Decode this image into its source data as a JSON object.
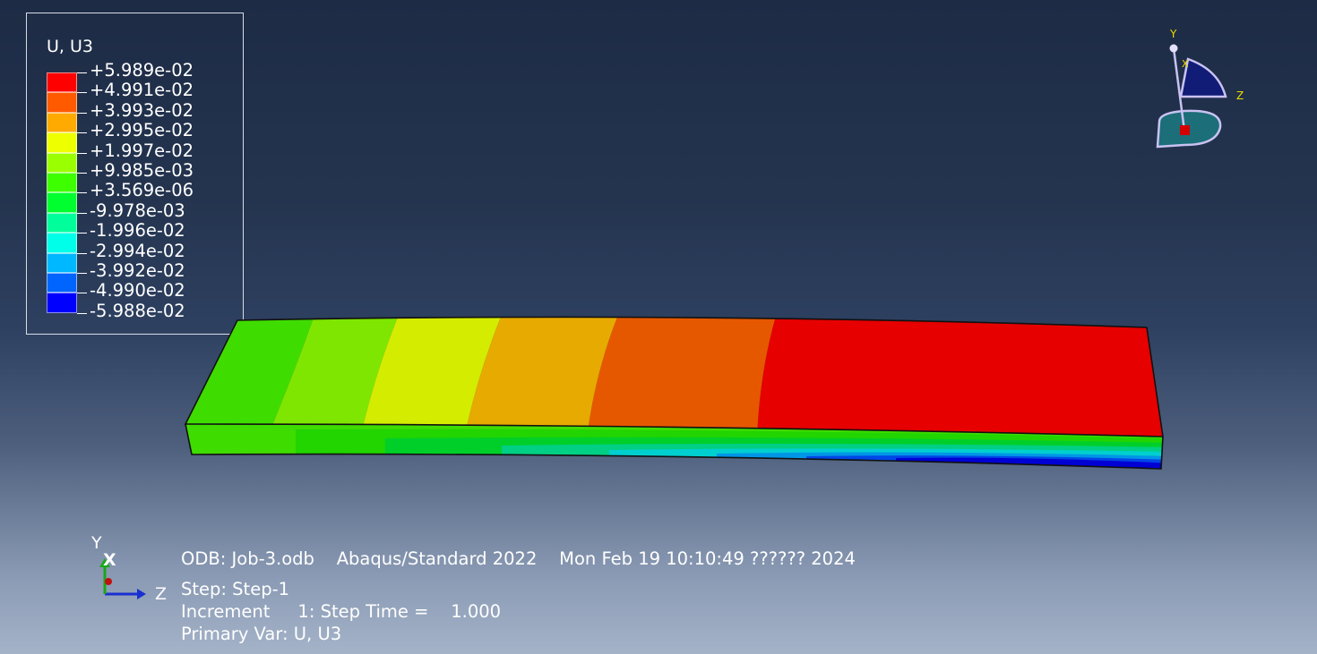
{
  "legend": {
    "title": "U, U3",
    "entries": [
      {
        "label": "+5.989e-02",
        "color": "#ff0000"
      },
      {
        "label": "+4.991e-02",
        "color": "#ff5a00"
      },
      {
        "label": "+3.993e-02",
        "color": "#ffaa00"
      },
      {
        "label": "+2.995e-02",
        "color": "#eeff00"
      },
      {
        "label": "+1.997e-02",
        "color": "#9aff00"
      },
      {
        "label": "+9.985e-03",
        "color": "#3eff00"
      },
      {
        "label": "+3.569e-06",
        "color": "#00ff2e"
      },
      {
        "label": "-9.978e-03",
        "color": "#00ff9a"
      },
      {
        "label": "-1.996e-02",
        "color": "#00ffe8"
      },
      {
        "label": "-2.994e-02",
        "color": "#00b8ff"
      },
      {
        "label": "-3.992e-02",
        "color": "#0064ff"
      },
      {
        "label": "-4.990e-02",
        "color": "#0000ff"
      },
      {
        "label": "-5.988e-02",
        "color": ""
      }
    ]
  },
  "triad": {
    "y_label": "Y",
    "x_label": "X",
    "z_label": "Z"
  },
  "csys": {
    "y_label": "Y",
    "x_label": "X",
    "z_label": "Z"
  },
  "info": {
    "line1": "ODB: Job-3.odb    Abaqus/Standard 2022    Mon Feb 19 10:10:49 ?????? 2024",
    "line2": "Step: Step-1",
    "line3": "Increment     1: Step Time =    1.000",
    "line4": "Primary Var: U, U3"
  },
  "beam": {
    "top_band_colors": [
      "#3fdc00",
      "#7ee600",
      "#d4ec00",
      "#e6aa00",
      "#e65800",
      "#e60000"
    ],
    "side_band_colors": [
      "#3fdc00",
      "#22d400",
      "#00cf2a",
      "#00cf84",
      "#00cfcf",
      "#0096e6",
      "#0046e6",
      "#0000d4"
    ]
  }
}
